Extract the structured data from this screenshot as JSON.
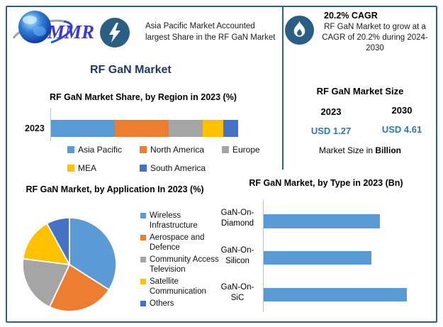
{
  "brand": {
    "logo_text": "MMR"
  },
  "header": {
    "highlight_text": "Asia Pacific Market Accounted largest Share in the RF GaN Market",
    "cagr_title": "20.2% CAGR",
    "cagr_text": "RF GaN Market to grow at a CAGR of 20.2% during 2024-2030",
    "main_title": "RF GaN Market"
  },
  "market_size": {
    "title": "RF GaN Market Size",
    "year_start": "2023",
    "year_end": "2030",
    "value_start": "USD 1.27",
    "value_end": "USD 4.61",
    "note_prefix": "Market Size in ",
    "note_bold": "Billion"
  },
  "colors": {
    "accent_navy": "#1F3864",
    "badge_blue": "#2B5E85",
    "frame_border": "#2E6084",
    "usd_blue": "#2E75B6",
    "series_blue": "#5B9BD5",
    "series_orange": "#ED7D31",
    "series_gray": "#A5A5A5",
    "series_yellow": "#FFC000",
    "series_darkblue": "#4472C4"
  },
  "icons": [
    "globe-logo",
    "bolt-icon",
    "flame-icon"
  ],
  "chart_data": [
    {
      "type": "bar",
      "subtype": "stacked-horizontal",
      "title": "RF GaN Market Share, by Region in 2023 (%)",
      "categories": [
        "2023"
      ],
      "unit": "%",
      "legend_position": "bottom",
      "series": [
        {
          "name": "Asia Pacific",
          "values": [
            34
          ],
          "color": "#5B9BD5"
        },
        {
          "name": "North America",
          "values": [
            29
          ],
          "color": "#ED7D31"
        },
        {
          "name": "Europe",
          "values": [
            18
          ],
          "color": "#A5A5A5"
        },
        {
          "name": "MEA",
          "values": [
            11
          ],
          "color": "#FFC000"
        },
        {
          "name": "South America",
          "values": [
            8
          ],
          "color": "#4472C4"
        }
      ]
    },
    {
      "type": "pie",
      "title": "RF GaN Market, by Application In 2023 (%)",
      "labels": [
        "Wireless Infrastructure",
        "Aerospace and Defence",
        "Community Access Television",
        "Satellite Communication",
        "Others"
      ],
      "values": [
        34,
        23,
        20,
        15,
        8
      ],
      "colors": [
        "#5B9BD5",
        "#ED7D31",
        "#A5A5A5",
        "#FFC000",
        "#4472C4"
      ],
      "legend_position": "right",
      "start_angle_deg": 0,
      "direction": "clockwise"
    },
    {
      "type": "bar",
      "subtype": "horizontal",
      "title": "RF GaN Market, by Type in 2023 (Bn)",
      "categories": [
        "GaN-On-Diamond",
        "GaN-On-Silicon",
        "GaN-On-SiC"
      ],
      "values": [
        0.81,
        0.75,
        1.0
      ],
      "value_note": "relative bar lengths; no value axis labels shown",
      "color": "#5B9BD5",
      "grid": false
    }
  ]
}
